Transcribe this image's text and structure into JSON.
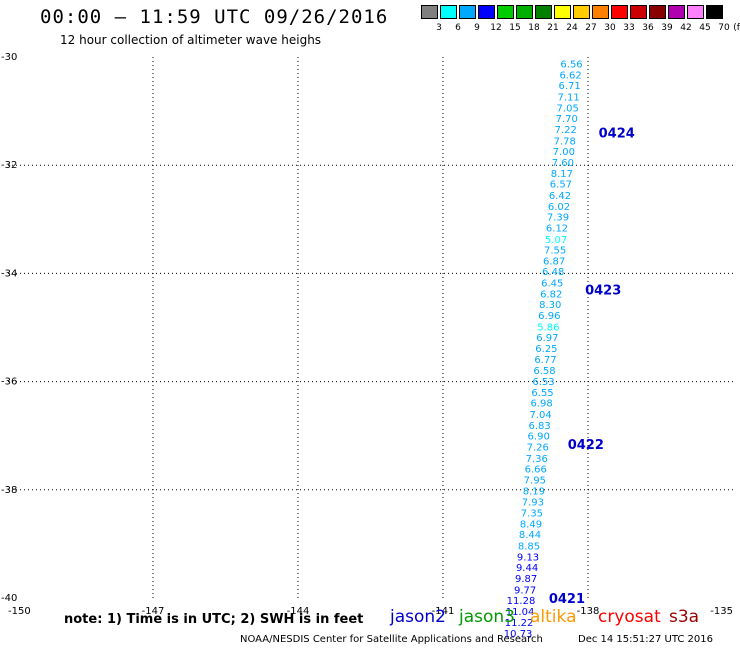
{
  "title": "00:00 – 11:59 UTC 09/26/2016",
  "subtitle": "12 hour collection of altimeter wave heighs",
  "scale": {
    "colors": [
      "#808080",
      "#00ffff",
      "#00a8ff",
      "#0000ff",
      "#00cc00",
      "#00b000",
      "#008000",
      "#ffff00",
      "#ffcc00",
      "#ff8000",
      "#ff0000",
      "#cc0000",
      "#880000",
      "#b000b0",
      "#ff80ff",
      "#000000"
    ],
    "labels": [
      "3",
      "6",
      "9",
      "12",
      "15",
      "18",
      "21",
      "24",
      "27",
      "30",
      "33",
      "36",
      "39",
      "42",
      "45",
      "70"
    ],
    "unit": "(ft)"
  },
  "chart_data": {
    "type": "scatter",
    "xlim": [
      -150,
      -135
    ],
    "ylim": [
      -40,
      -30
    ],
    "x_ticks": [
      "-150",
      "-147",
      "-144",
      "-141",
      "-138",
      "-135"
    ],
    "y_ticks": [
      "-30",
      "-32",
      "-34",
      "-36",
      "-38",
      "-40"
    ],
    "track_points": [
      {
        "lon": -138.11,
        "lat": -30.12,
        "swh": "6.56",
        "color": "#00a8ff"
      },
      {
        "lon": -138.13,
        "lat": -30.32,
        "swh": "6.62",
        "color": "#00a8ff"
      },
      {
        "lon": -138.15,
        "lat": -30.52,
        "swh": "6.71",
        "color": "#00a8ff"
      },
      {
        "lon": -138.17,
        "lat": -30.73,
        "swh": "7.11",
        "color": "#00a8ff"
      },
      {
        "lon": -138.19,
        "lat": -30.93,
        "swh": "7.05",
        "color": "#00a8ff"
      },
      {
        "lon": -138.21,
        "lat": -31.13,
        "swh": "7.70",
        "color": "#00a8ff"
      },
      {
        "lon": -138.23,
        "lat": -31.33,
        "swh": "7.22",
        "color": "#00a8ff"
      },
      {
        "lon": -138.25,
        "lat": -31.54,
        "swh": "7.78",
        "color": "#00a8ff"
      },
      {
        "lon": -138.27,
        "lat": -31.74,
        "swh": "7.00",
        "color": "#00a8ff"
      },
      {
        "lon": -138.29,
        "lat": -31.94,
        "swh": "7.60",
        "color": "#00a8ff"
      },
      {
        "lon": -138.31,
        "lat": -32.14,
        "swh": "8.17",
        "color": "#00a8ff"
      },
      {
        "lon": -138.33,
        "lat": -32.34,
        "swh": "6.57",
        "color": "#00a8ff"
      },
      {
        "lon": -138.35,
        "lat": -32.55,
        "swh": "6.42",
        "color": "#00a8ff"
      },
      {
        "lon": -138.37,
        "lat": -32.75,
        "swh": "6.02",
        "color": "#00a8ff"
      },
      {
        "lon": -138.39,
        "lat": -32.95,
        "swh": "7.39",
        "color": "#00a8ff"
      },
      {
        "lon": -138.41,
        "lat": -33.15,
        "swh": "6.12",
        "color": "#00a8ff"
      },
      {
        "lon": -138.43,
        "lat": -33.36,
        "swh": "5.07",
        "color": "#00ffff"
      },
      {
        "lon": -138.45,
        "lat": -33.56,
        "swh": "7.55",
        "color": "#00a8ff"
      },
      {
        "lon": -138.47,
        "lat": -33.76,
        "swh": "6.87",
        "color": "#00a8ff"
      },
      {
        "lon": -138.49,
        "lat": -33.96,
        "swh": "6.48",
        "color": "#00a8ff"
      },
      {
        "lon": -138.51,
        "lat": -34.17,
        "swh": "6.45",
        "color": "#00a8ff"
      },
      {
        "lon": -138.53,
        "lat": -34.37,
        "swh": "6.82",
        "color": "#00a8ff"
      },
      {
        "lon": -138.55,
        "lat": -34.57,
        "swh": "8.30",
        "color": "#00a8ff"
      },
      {
        "lon": -138.57,
        "lat": -34.77,
        "swh": "6.96",
        "color": "#00a8ff"
      },
      {
        "lon": -138.59,
        "lat": -34.98,
        "swh": "5.86",
        "color": "#00ffff"
      },
      {
        "lon": -138.61,
        "lat": -35.18,
        "swh": "6.97",
        "color": "#00a8ff"
      },
      {
        "lon": -138.63,
        "lat": -35.38,
        "swh": "6.25",
        "color": "#00a8ff"
      },
      {
        "lon": -138.65,
        "lat": -35.58,
        "swh": "6.77",
        "color": "#00a8ff"
      },
      {
        "lon": -138.67,
        "lat": -35.79,
        "swh": "6.58",
        "color": "#00a8ff"
      },
      {
        "lon": -138.69,
        "lat": -35.99,
        "swh": "6.53",
        "color": "#00a8ff"
      },
      {
        "lon": -138.71,
        "lat": -36.19,
        "swh": "6.55",
        "color": "#00a8ff"
      },
      {
        "lon": -138.73,
        "lat": -36.39,
        "swh": "6.98",
        "color": "#00a8ff"
      },
      {
        "lon": -138.75,
        "lat": -36.6,
        "swh": "7.04",
        "color": "#00a8ff"
      },
      {
        "lon": -138.77,
        "lat": -36.8,
        "swh": "6.83",
        "color": "#00a8ff"
      },
      {
        "lon": -138.79,
        "lat": -37.0,
        "swh": "6.90",
        "color": "#00a8ff"
      },
      {
        "lon": -138.81,
        "lat": -37.2,
        "swh": "7.26",
        "color": "#00a8ff"
      },
      {
        "lon": -138.83,
        "lat": -37.41,
        "swh": "7.36",
        "color": "#00a8ff"
      },
      {
        "lon": -138.85,
        "lat": -37.61,
        "swh": "6.66",
        "color": "#00a8ff"
      },
      {
        "lon": -138.87,
        "lat": -37.81,
        "swh": "7.95",
        "color": "#00a8ff"
      },
      {
        "lon": -138.89,
        "lat": -38.01,
        "swh": "8.19",
        "color": "#00a8ff"
      },
      {
        "lon": -138.91,
        "lat": -38.22,
        "swh": "7.93",
        "color": "#00a8ff"
      },
      {
        "lon": -138.93,
        "lat": -38.42,
        "swh": "7.35",
        "color": "#00a8ff"
      },
      {
        "lon": -138.95,
        "lat": -38.62,
        "swh": "8.49",
        "color": "#00a8ff"
      },
      {
        "lon": -138.97,
        "lat": -38.82,
        "swh": "8.44",
        "color": "#00a8ff"
      },
      {
        "lon": -138.99,
        "lat": -39.03,
        "swh": "8.85",
        "color": "#00a8ff"
      },
      {
        "lon": -139.01,
        "lat": -39.23,
        "swh": "9.13",
        "color": "#0000ff"
      },
      {
        "lon": -139.03,
        "lat": -39.43,
        "swh": "9.44",
        "color": "#0000ff"
      },
      {
        "lon": -139.05,
        "lat": -39.63,
        "swh": "9.87",
        "color": "#0000ff"
      },
      {
        "lon": -139.07,
        "lat": -39.84,
        "swh": "9.77",
        "color": "#0000ff"
      },
      {
        "lon": -139.09,
        "lat": -40.04,
        "swh": "11.28",
        "color": "#0000ff"
      },
      {
        "lon": -139.11,
        "lat": -40.24,
        "swh": "11.04",
        "color": "#0000ff"
      },
      {
        "lon": -139.13,
        "lat": -40.44,
        "swh": "11.22",
        "color": "#0000ff"
      },
      {
        "lon": -139.15,
        "lat": -40.65,
        "swh": "10.73",
        "color": "#0000ff"
      }
    ],
    "time_labels": [
      {
        "text": "0424",
        "lon": -137.78,
        "lat": -31.4
      },
      {
        "text": "0423",
        "lon": -138.06,
        "lat": -34.3
      },
      {
        "text": "0422",
        "lon": -138.42,
        "lat": -37.15
      },
      {
        "text": "0421",
        "lon": -138.81,
        "lat": -40.0
      }
    ]
  },
  "note": "note: 1) Time is in UTC; 2) SWH is in feet",
  "satellites": [
    {
      "name": "jason2",
      "color": "#0000cc"
    },
    {
      "name": "jason3",
      "color": "#009900"
    },
    {
      "name": "altika",
      "color": "#ff9900"
    },
    {
      "name": "cryosat",
      "color": "#ff0000"
    },
    {
      "name": "s3a",
      "color": "#990000"
    }
  ],
  "footer": "NOAA/NESDIS Center for Satellite Applications and Research",
  "footer_date": "Dec 14 15:51:27 UTC 2016"
}
